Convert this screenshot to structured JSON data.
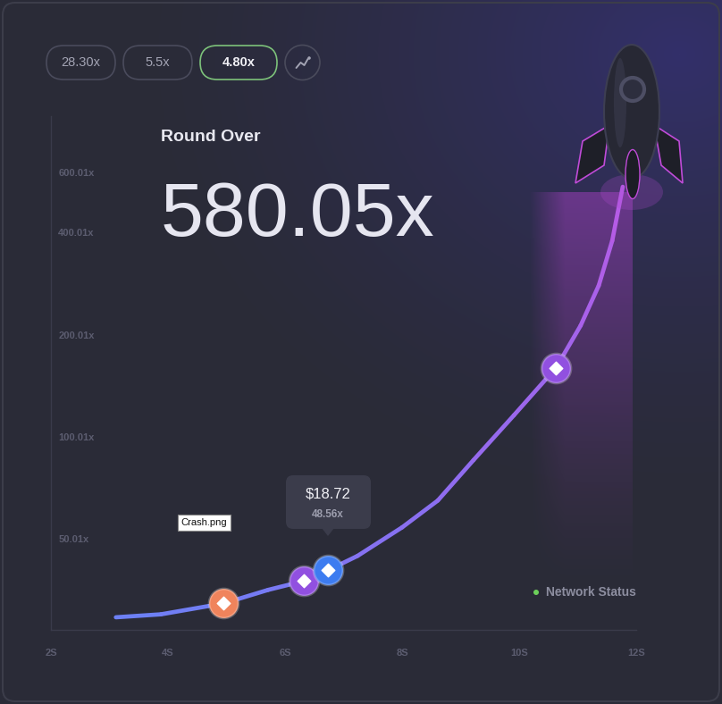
{
  "history": [
    {
      "text": "28.30x",
      "active": false
    },
    {
      "text": "5.5x",
      "active": false
    },
    {
      "text": "4.80x",
      "active": true
    }
  ],
  "status": "Round Over",
  "result": "580.05x",
  "tooltip": {
    "amount": "$18.72",
    "multiplier": "48.56x"
  },
  "file_label": "Crash.png",
  "network_status": "Network Status",
  "chart_data": {
    "type": "line",
    "log": "y",
    "grid": false,
    "x": [
      3.11,
      3.88,
      4.95,
      5.71,
      6.32,
      6.73,
      7.24,
      8.0,
      8.61,
      9.22,
      9.91,
      10.63,
      11.05,
      11.36,
      11.59,
      11.77
    ],
    "values": [
      29.4,
      30.0,
      32.3,
      35.4,
      37.6,
      40.4,
      44.6,
      54.1,
      64.9,
      85.4,
      115.7,
      159.7,
      212.6,
      279,
      378,
      545
    ],
    "xlim": [
      2,
      12
    ],
    "ylim": [
      27,
      880
    ],
    "xticks": [
      {
        "value": 2,
        "label": "2S"
      },
      {
        "value": 4,
        "label": "4S"
      },
      {
        "value": 6,
        "label": "6S"
      },
      {
        "value": 8,
        "label": "8S"
      },
      {
        "value": 10,
        "label": "10S"
      },
      {
        "value": 12,
        "label": "12S"
      }
    ],
    "yticks": [
      {
        "value": 50.01,
        "label": "50.01x"
      },
      {
        "value": 100.01,
        "label": "100.01x"
      },
      {
        "value": 200.01,
        "label": "200.01x"
      },
      {
        "value": 400.01,
        "label": "400.01x"
      },
      {
        "value": 600.01,
        "label": "600.01x"
      }
    ],
    "points": [
      {
        "x": 4.95,
        "y": 32.3,
        "color": "#f0845c"
      },
      {
        "x": 6.32,
        "y": 37.6,
        "color": "#9150e0"
      },
      {
        "x": 6.73,
        "y": 40.4,
        "color": "#3d7cf0"
      },
      {
        "x": 10.63,
        "y": 159.7,
        "color": "#9150e0"
      }
    ]
  }
}
